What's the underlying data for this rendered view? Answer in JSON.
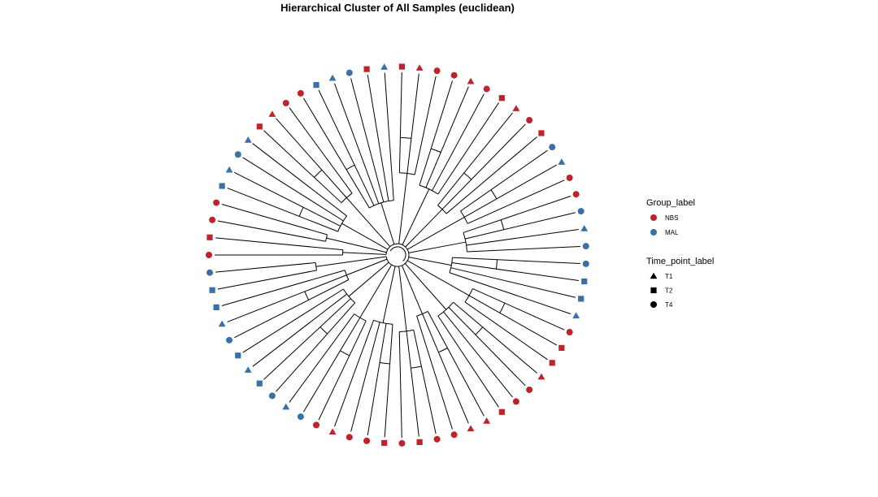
{
  "title": "Hierarchical Cluster of All Samples (euclidean)",
  "colors": {
    "NBS": "#C0222C",
    "MAL": "#3A6FA8"
  },
  "legend": {
    "group_title": "Group_label",
    "group_items": [
      {
        "label": "NBS",
        "group": "NBS"
      },
      {
        "label": "MAL",
        "group": "MAL"
      }
    ],
    "time_title": "Time_point_label",
    "time_items": [
      {
        "label": "T1",
        "shape": "triangle"
      },
      {
        "label": "T2",
        "shape": "square"
      },
      {
        "label": "T4",
        "shape": "circle"
      }
    ]
  },
  "tips": [
    {
      "group": "NBS",
      "shape": "circle"
    },
    {
      "group": "NBS",
      "shape": "square"
    },
    {
      "group": "NBS",
      "shape": "circle"
    },
    {
      "group": "NBS",
      "shape": "circle"
    },
    {
      "group": "MAL",
      "shape": "square"
    },
    {
      "group": "MAL",
      "shape": "triangle"
    },
    {
      "group": "MAL",
      "shape": "circle"
    },
    {
      "group": "MAL",
      "shape": "triangle"
    },
    {
      "group": "NBS",
      "shape": "square"
    },
    {
      "group": "NBS",
      "shape": "triangle"
    },
    {
      "group": "NBS",
      "shape": "circle"
    },
    {
      "group": "NBS",
      "shape": "circle"
    },
    {
      "group": "MAL",
      "shape": "square"
    },
    {
      "group": "MAL",
      "shape": "triangle"
    },
    {
      "group": "MAL",
      "shape": "circle"
    },
    {
      "group": "NBS",
      "shape": "square"
    },
    {
      "group": "MAL",
      "shape": "triangle"
    },
    {
      "group": "NBS",
      "shape": "square"
    },
    {
      "group": "NBS",
      "shape": "triangle"
    },
    {
      "group": "NBS",
      "shape": "circle"
    },
    {
      "group": "NBS",
      "shape": "circle"
    },
    {
      "group": "NBS",
      "shape": "triangle"
    },
    {
      "group": "NBS",
      "shape": "circle"
    },
    {
      "group": "NBS",
      "shape": "square"
    },
    {
      "group": "NBS",
      "shape": "triangle"
    },
    {
      "group": "NBS",
      "shape": "circle"
    },
    {
      "group": "NBS",
      "shape": "square"
    },
    {
      "group": "MAL",
      "shape": "circle"
    },
    {
      "group": "MAL",
      "shape": "triangle"
    },
    {
      "group": "NBS",
      "shape": "circle"
    },
    {
      "group": "NBS",
      "shape": "circle"
    },
    {
      "group": "MAL",
      "shape": "circle"
    },
    {
      "group": "MAL",
      "shape": "triangle"
    },
    {
      "group": "MAL",
      "shape": "circle"
    },
    {
      "group": "MAL",
      "shape": "circle"
    },
    {
      "group": "MAL",
      "shape": "square"
    },
    {
      "group": "MAL",
      "shape": "square"
    },
    {
      "group": "MAL",
      "shape": "triangle"
    },
    {
      "group": "NBS",
      "shape": "circle"
    },
    {
      "group": "NBS",
      "shape": "square"
    },
    {
      "group": "NBS",
      "shape": "square"
    },
    {
      "group": "NBS",
      "shape": "triangle"
    },
    {
      "group": "NBS",
      "shape": "circle"
    },
    {
      "group": "NBS",
      "shape": "circle"
    },
    {
      "group": "NBS",
      "shape": "square"
    },
    {
      "group": "NBS",
      "shape": "triangle"
    },
    {
      "group": "NBS",
      "shape": "triangle"
    },
    {
      "group": "NBS",
      "shape": "circle"
    },
    {
      "group": "NBS",
      "shape": "circle"
    },
    {
      "group": "NBS",
      "shape": "square"
    },
    {
      "group": "NBS",
      "shape": "circle"
    },
    {
      "group": "NBS",
      "shape": "square"
    },
    {
      "group": "NBS",
      "shape": "circle"
    },
    {
      "group": "NBS",
      "shape": "circle"
    },
    {
      "group": "NBS",
      "shape": "triangle"
    },
    {
      "group": "NBS",
      "shape": "circle"
    },
    {
      "group": "MAL",
      "shape": "circle"
    },
    {
      "group": "MAL",
      "shape": "triangle"
    },
    {
      "group": "MAL",
      "shape": "circle"
    },
    {
      "group": "MAL",
      "shape": "square"
    },
    {
      "group": "MAL",
      "shape": "triangle"
    },
    {
      "group": "MAL",
      "shape": "square"
    },
    {
      "group": "MAL",
      "shape": "circle"
    },
    {
      "group": "MAL",
      "shape": "triangle"
    },
    {
      "group": "MAL",
      "shape": "square"
    },
    {
      "group": "MAL",
      "shape": "square"
    },
    {
      "group": "MAL",
      "shape": "circle"
    }
  ],
  "groups": [
    {
      "leaves": [
        0,
        1
      ],
      "merge": 0.3
    },
    {
      "leaves": [
        2,
        3
      ],
      "merge": 0.4
    },
    {
      "leaves": [
        4,
        5,
        6,
        7
      ],
      "merge": 0.35
    },
    {
      "leaves": [
        8,
        9,
        10
      ],
      "merge": 0.42
    },
    {
      "leaves": [
        11,
        12,
        13,
        14,
        15,
        16
      ],
      "merge": 0.3
    },
    {
      "leaves": [
        17,
        18,
        19
      ],
      "merge": 0.45
    },
    {
      "leaves": [
        20,
        21,
        22,
        23
      ],
      "merge": 0.4
    },
    {
      "leaves": [
        24,
        25,
        26
      ],
      "merge": 0.35
    },
    {
      "leaves": [
        27,
        28,
        29
      ],
      "merge": 0.42
    },
    {
      "leaves": [
        30,
        31,
        32,
        33
      ],
      "merge": 0.38
    },
    {
      "leaves": [
        34,
        35,
        36,
        37
      ],
      "merge": 0.3
    },
    {
      "leaves": [
        38,
        39,
        40
      ],
      "merge": 0.45
    },
    {
      "leaves": [
        41,
        42,
        43,
        44
      ],
      "merge": 0.4
    },
    {
      "leaves": [
        45,
        46,
        47
      ],
      "merge": 0.35
    },
    {
      "leaves": [
        48,
        49,
        50
      ],
      "merge": 0.42
    },
    {
      "leaves": [
        51,
        52,
        53,
        54
      ],
      "merge": 0.38
    },
    {
      "leaves": [
        55,
        56,
        57
      ],
      "merge": 0.4
    },
    {
      "leaves": [
        58,
        59,
        60,
        61
      ],
      "merge": 0.35
    },
    {
      "leaves": [
        62,
        63,
        64
      ],
      "merge": 0.3
    },
    {
      "leaves": [
        65,
        66
      ],
      "merge": 0.45
    }
  ]
}
